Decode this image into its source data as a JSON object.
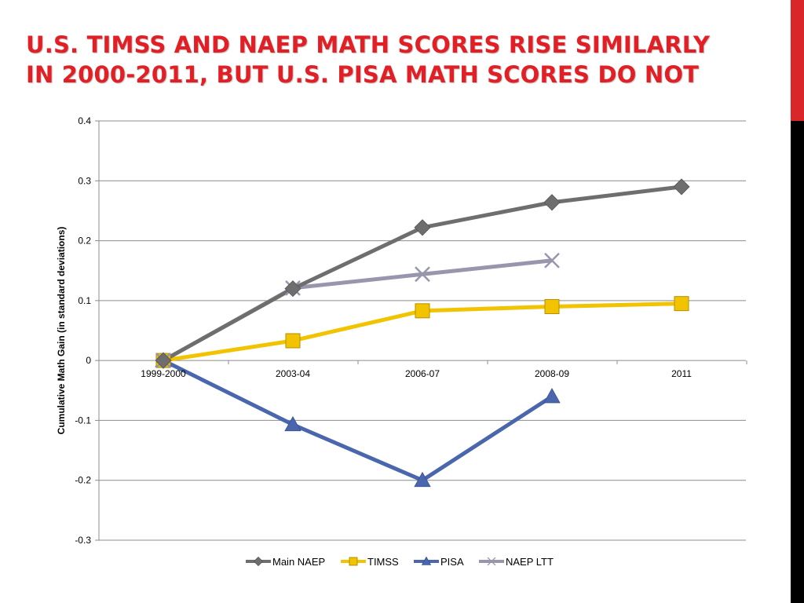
{
  "slide": {
    "title_line1": "U.S. TIMSS and NAEP math scores rise similarly",
    "title_line2": "in 2000-2011, but U.S. PISA math scores do not"
  },
  "colors": {
    "title": "#e31f26",
    "accent_red": "#d8262a",
    "accent_black": "#000000",
    "main_naep": "#6e6e6e",
    "timss": "#f2c300",
    "pisa": "#4a66ad",
    "naep_ltt": "#9896ac"
  },
  "chart_data": {
    "type": "line",
    "title": "",
    "xlabel": "",
    "ylabel": "Cumulative Math Gain (in standard deviations)",
    "ylim": [
      -0.3,
      0.4
    ],
    "yticks": [
      0.4,
      0.3,
      0.2,
      0.1,
      0,
      -0.1,
      -0.2,
      -0.3
    ],
    "ytick_labels": [
      "0.4",
      "0.3",
      "0.2",
      "0.1",
      "0",
      "-0.1",
      "-0.2",
      "-0.3"
    ],
    "grid": true,
    "legend_position": "bottom",
    "categories": [
      "1999-2000",
      "2003-04",
      "2006-07",
      "2008-09",
      "2011"
    ],
    "series": [
      {
        "name": "Main NAEP",
        "marker": "diamond",
        "values": [
          0,
          0.12,
          0.222,
          0.264,
          0.29
        ]
      },
      {
        "name": "TIMSS",
        "marker": "square",
        "values": [
          0,
          0.033,
          0.083,
          0.09,
          0.095
        ]
      },
      {
        "name": "PISA",
        "marker": "triangle",
        "values": [
          0,
          -0.107,
          -0.2,
          -0.06,
          null
        ]
      },
      {
        "name": "NAEP LTT",
        "marker": "x",
        "values": [
          0,
          0.121,
          0.144,
          0.167,
          null
        ]
      }
    ]
  }
}
